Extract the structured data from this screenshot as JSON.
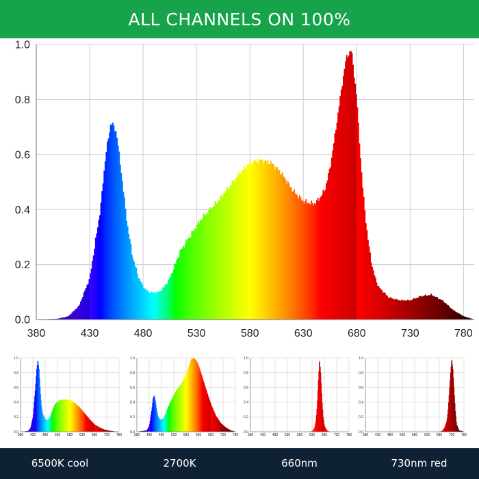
{
  "banner": {
    "title": "ALL CHANNELS ON 100%"
  },
  "captions": [
    "6500K cool",
    "2700K",
    "660nm",
    "730nm red"
  ],
  "chart_data": [
    {
      "type": "area",
      "title": "ALL CHANNELS ON 100%",
      "xlim": [
        380,
        790
      ],
      "ylim": [
        0,
        1.0
      ],
      "xticks": [
        380,
        430,
        480,
        530,
        580,
        630,
        680,
        730,
        780
      ],
      "yticks": [
        0.0,
        0.2,
        0.4,
        0.6,
        0.8,
        1.0
      ],
      "grid": true,
      "x": [
        380,
        400,
        410,
        420,
        430,
        440,
        445,
        450,
        455,
        460,
        465,
        470,
        475,
        480,
        485,
        490,
        495,
        500,
        505,
        510,
        515,
        520,
        525,
        530,
        535,
        540,
        550,
        560,
        570,
        580,
        590,
        600,
        610,
        620,
        630,
        640,
        645,
        650,
        655,
        660,
        665,
        670,
        675,
        680,
        685,
        690,
        695,
        700,
        710,
        720,
        730,
        740,
        750,
        760,
        770,
        780,
        790
      ],
      "y": [
        0,
        0.003,
        0.012,
        0.05,
        0.15,
        0.4,
        0.6,
        0.72,
        0.68,
        0.52,
        0.35,
        0.23,
        0.16,
        0.12,
        0.1,
        0.098,
        0.1,
        0.12,
        0.15,
        0.2,
        0.25,
        0.28,
        0.31,
        0.34,
        0.37,
        0.39,
        0.43,
        0.48,
        0.53,
        0.57,
        0.58,
        0.57,
        0.53,
        0.47,
        0.43,
        0.42,
        0.44,
        0.47,
        0.55,
        0.68,
        0.82,
        0.95,
        0.98,
        0.8,
        0.5,
        0.3,
        0.18,
        0.12,
        0.08,
        0.07,
        0.07,
        0.085,
        0.09,
        0.07,
        0.035,
        0.012,
        0
      ]
    },
    {
      "type": "area",
      "caption": "6500K cool",
      "xlim": [
        380,
        780
      ],
      "ylim": [
        0,
        1.0
      ],
      "xticks": [
        380,
        430,
        480,
        530,
        580,
        630,
        680,
        730,
        780
      ],
      "yticks": [
        0.0,
        0.2,
        0.4,
        0.6,
        0.8,
        1.0
      ],
      "x": [
        380,
        410,
        420,
        430,
        440,
        445,
        450,
        455,
        460,
        465,
        470,
        480,
        490,
        500,
        510,
        520,
        540,
        560,
        580,
        600,
        620,
        640,
        660,
        680,
        700,
        720,
        740,
        760,
        780
      ],
      "y": [
        0,
        0.01,
        0.05,
        0.2,
        0.6,
        0.85,
        0.98,
        0.85,
        0.55,
        0.35,
        0.24,
        0.17,
        0.16,
        0.2,
        0.3,
        0.38,
        0.43,
        0.44,
        0.43,
        0.39,
        0.33,
        0.25,
        0.17,
        0.1,
        0.06,
        0.03,
        0.015,
        0.005,
        0
      ]
    },
    {
      "type": "area",
      "caption": "2700K",
      "xlim": [
        380,
        780
      ],
      "ylim": [
        0,
        1.0
      ],
      "xticks": [
        380,
        430,
        480,
        530,
        580,
        630,
        680,
        730,
        780
      ],
      "yticks": [
        0.0,
        0.2,
        0.4,
        0.6,
        0.8,
        1.0
      ],
      "x": [
        380,
        420,
        430,
        440,
        445,
        450,
        455,
        460,
        465,
        470,
        480,
        490,
        500,
        510,
        520,
        530,
        540,
        560,
        580,
        590,
        600,
        610,
        620,
        630,
        640,
        660,
        680,
        700,
        720,
        740,
        760,
        780
      ],
      "y": [
        0,
        0.02,
        0.08,
        0.3,
        0.45,
        0.5,
        0.42,
        0.3,
        0.22,
        0.18,
        0.16,
        0.2,
        0.28,
        0.36,
        0.43,
        0.5,
        0.56,
        0.65,
        0.78,
        0.88,
        0.98,
        1.0,
        0.97,
        0.9,
        0.8,
        0.58,
        0.38,
        0.22,
        0.12,
        0.06,
        0.02,
        0
      ]
    },
    {
      "type": "area",
      "caption": "660nm",
      "xlim": [
        380,
        780
      ],
      "ylim": [
        0,
        1.0
      ],
      "xticks": [
        380,
        430,
        480,
        530,
        580,
        630,
        680,
        730,
        780
      ],
      "yticks": [
        0.0,
        0.2,
        0.4,
        0.6,
        0.8,
        1.0
      ],
      "x": [
        380,
        620,
        630,
        640,
        645,
        650,
        655,
        660,
        665,
        670,
        675,
        680,
        690,
        700,
        780
      ],
      "y": [
        0,
        0,
        0.01,
        0.06,
        0.15,
        0.35,
        0.7,
        1.0,
        0.8,
        0.45,
        0.2,
        0.08,
        0.02,
        0,
        0
      ]
    },
    {
      "type": "area",
      "caption": "730nm red",
      "xlim": [
        380,
        780
      ],
      "ylim": [
        0,
        1.0
      ],
      "xticks": [
        380,
        430,
        480,
        530,
        580,
        630,
        680,
        730,
        780
      ],
      "yticks": [
        0.0,
        0.2,
        0.4,
        0.6,
        0.8,
        1.0
      ],
      "x": [
        380,
        680,
        690,
        700,
        710,
        715,
        720,
        725,
        730,
        735,
        740,
        745,
        750,
        760,
        780
      ],
      "y": [
        0,
        0,
        0.01,
        0.05,
        0.15,
        0.3,
        0.55,
        0.8,
        1.0,
        0.85,
        0.55,
        0.28,
        0.1,
        0.02,
        0
      ]
    }
  ]
}
